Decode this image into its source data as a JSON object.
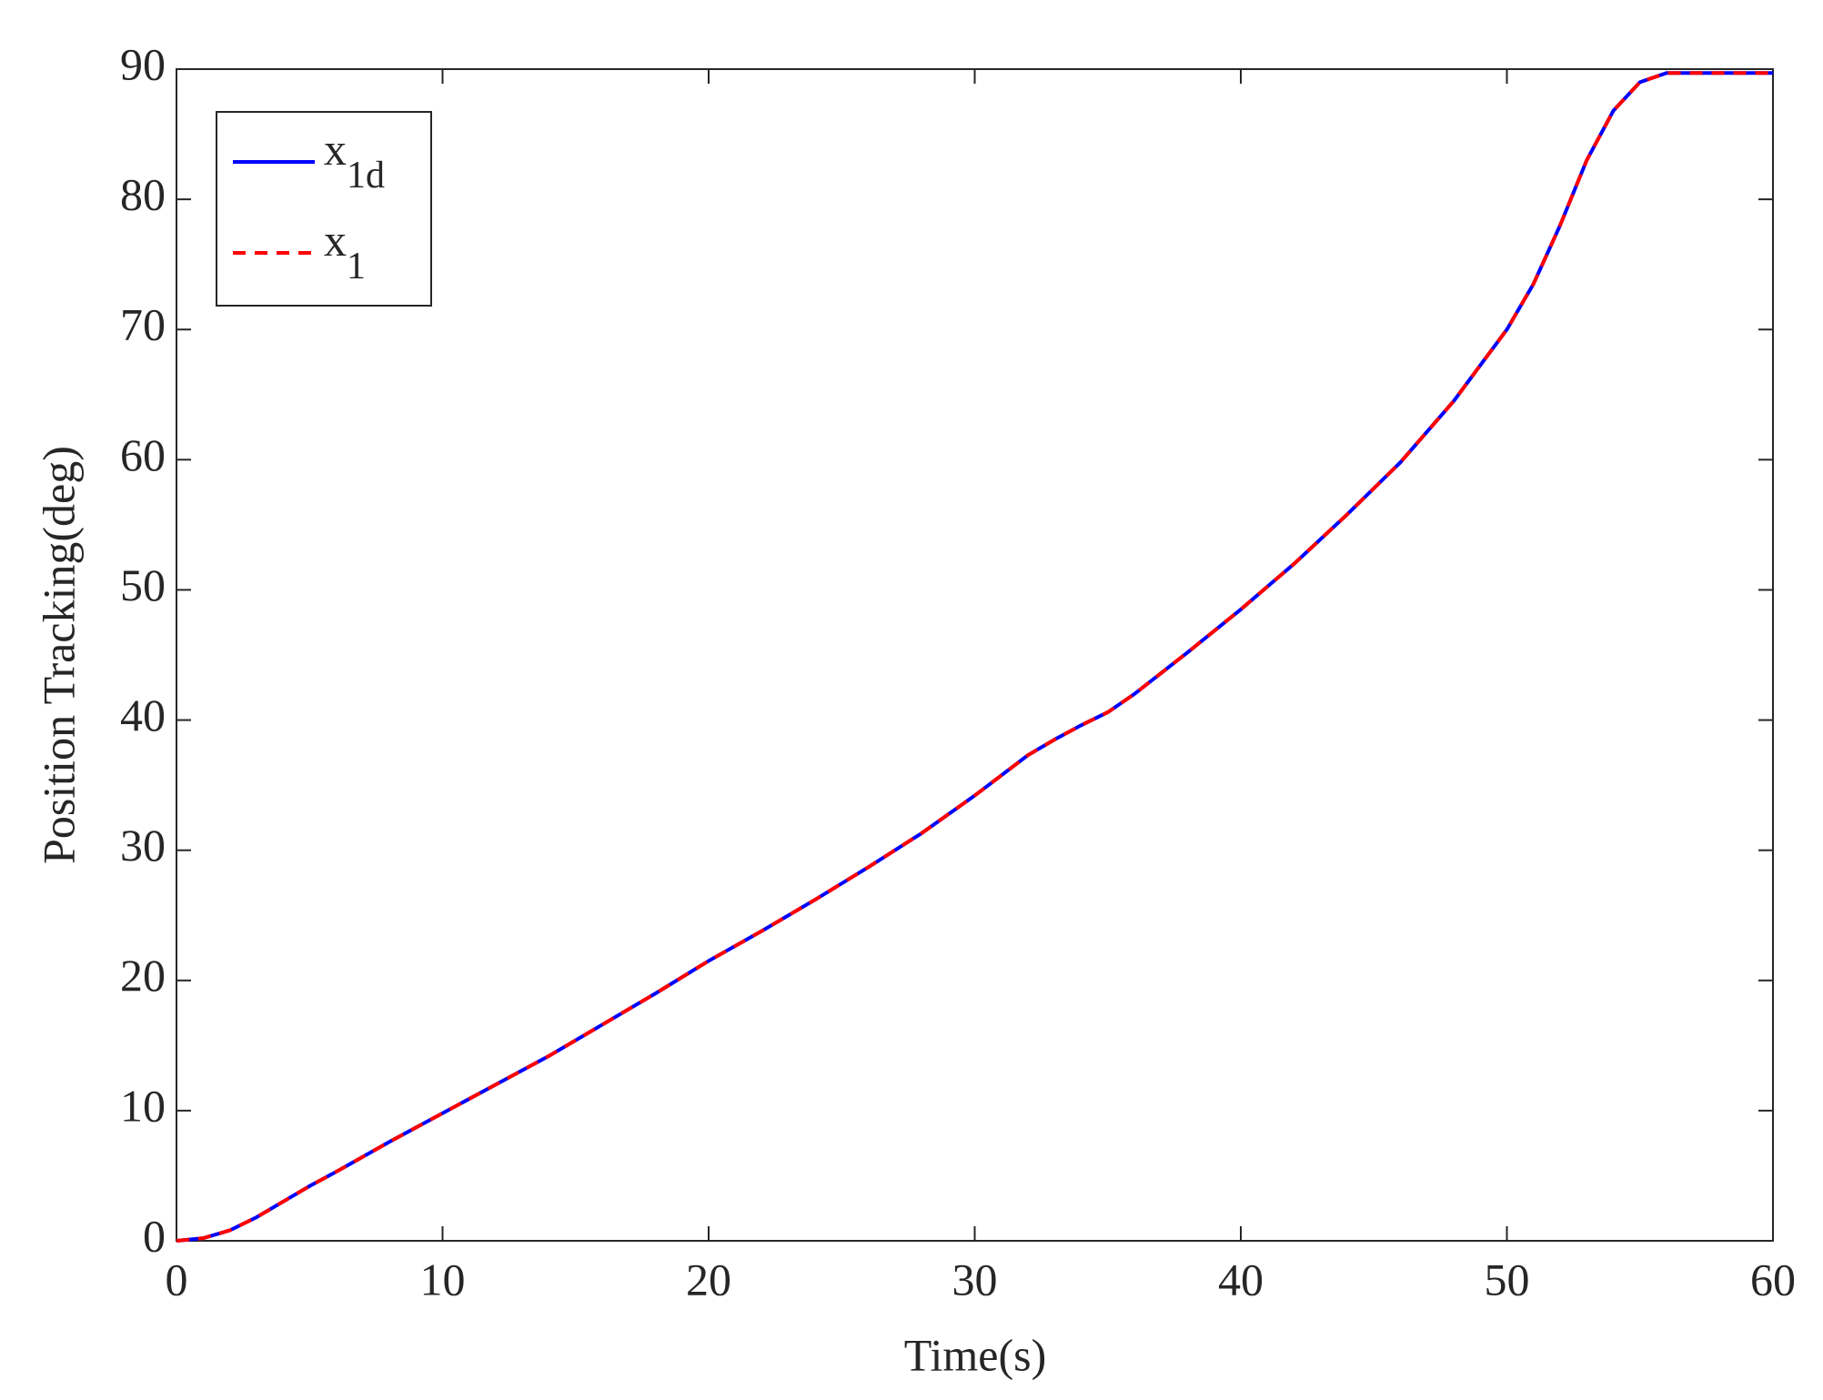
{
  "chart_data": {
    "type": "line",
    "x_label": "Time(s)",
    "y_label": "Position Tracking(deg)",
    "x": [
      0,
      1,
      2,
      3,
      4,
      5,
      6,
      8,
      10,
      12,
      14,
      16,
      18,
      20,
      22,
      24,
      26,
      28,
      30,
      32,
      33,
      34,
      35,
      36,
      38,
      40,
      42,
      44,
      46,
      48,
      50,
      51,
      52,
      53,
      54,
      55,
      56,
      58,
      60
    ],
    "series": [
      {
        "name": "x1d",
        "color": "#0000ff",
        "dashed": false,
        "values": [
          0,
          0.2,
          0.8,
          1.8,
          3.0,
          4.2,
          5.3,
          7.6,
          9.8,
          12.0,
          14.2,
          16.6,
          19.0,
          21.5,
          23.8,
          26.2,
          28.7,
          31.3,
          34.2,
          37.3,
          38.5,
          39.6,
          40.6,
          42.0,
          45.2,
          48.5,
          52.0,
          55.8,
          59.8,
          64.5,
          70.0,
          73.5,
          78.0,
          83.0,
          86.8,
          89.0,
          89.7,
          89.7,
          89.7
        ]
      },
      {
        "name": "x1",
        "color": "#ff0000",
        "dashed": true,
        "values": [
          0,
          0.2,
          0.8,
          1.8,
          3.0,
          4.2,
          5.3,
          7.6,
          9.8,
          12.0,
          14.2,
          16.6,
          19.0,
          21.5,
          23.8,
          26.2,
          28.7,
          31.3,
          34.2,
          37.3,
          38.5,
          39.6,
          40.6,
          42.0,
          45.2,
          48.5,
          52.0,
          55.8,
          59.8,
          64.5,
          70.0,
          73.5,
          78.0,
          83.0,
          86.8,
          89.0,
          89.7,
          89.7,
          89.7
        ]
      }
    ],
    "xlim": [
      0,
      60
    ],
    "xticks": [
      0,
      10,
      20,
      30,
      40,
      50,
      60
    ],
    "ylim": [
      0,
      90
    ],
    "yticks": [
      0,
      10,
      20,
      30,
      40,
      50,
      60,
      70,
      80,
      90
    ],
    "grid": false,
    "legend": "upper left"
  }
}
